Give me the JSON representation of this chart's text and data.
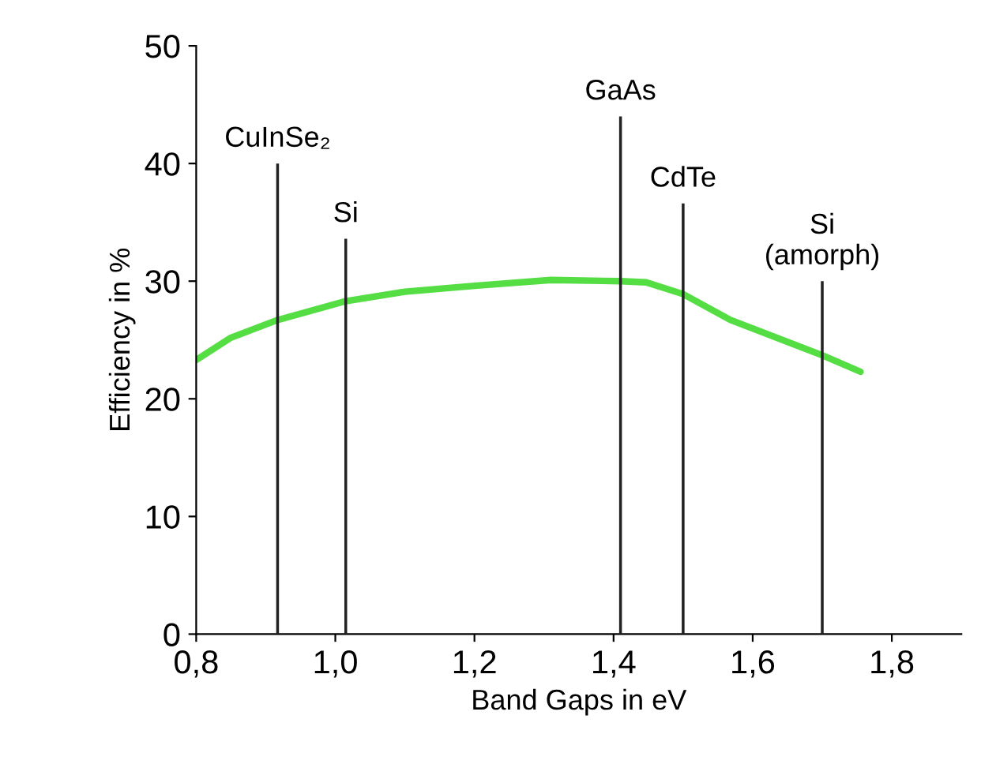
{
  "chart_data": {
    "type": "bar",
    "xlabel": "Band Gaps in eV",
    "ylabel": "Efficiency in %",
    "xlim": [
      0.8,
      1.9
    ],
    "xticks": [
      {
        "value": 0.8,
        "label": "0,8"
      },
      {
        "value": 1.0,
        "label": "1,0"
      },
      {
        "value": 1.2,
        "label": "1,2"
      },
      {
        "value": 1.4,
        "label": "1,4"
      },
      {
        "value": 1.6,
        "label": "1,6"
      },
      {
        "value": 1.8,
        "label": "1,8"
      }
    ],
    "ylim": [
      0,
      50
    ],
    "yticks": [
      0,
      10,
      20,
      30,
      40,
      50
    ],
    "grid": false,
    "legend": false,
    "series": [
      {
        "type": "line",
        "color": "#55dd44",
        "x": [
          0.8,
          0.85,
          0.917,
          1.015,
          1.1,
          1.2,
          1.31,
          1.41,
          1.447,
          1.5,
          1.568,
          1.7,
          1.755
        ],
        "values": [
          23.3,
          25.2,
          26.7,
          28.3,
          29.1,
          29.6,
          30.1,
          30.0,
          29.9,
          28.9,
          26.7,
          23.7,
          22.3
        ]
      },
      {
        "color": "#222222",
        "x": [
          0.917,
          1.015,
          1.41,
          1.5,
          1.7
        ],
        "values": [
          40,
          33.6,
          44,
          36.6,
          30
        ]
      }
    ],
    "annotations": [
      {
        "text": "CuInSe₂",
        "x": 0.917,
        "y": 40
      },
      {
        "text": "Si",
        "x": 1.015,
        "y": 33.6
      },
      {
        "text": "GaAs",
        "x": 1.41,
        "y": 44
      },
      {
        "text": "CdTe",
        "x": 1.5,
        "y": 36.6
      },
      {
        "text": "Si\n(amorph)",
        "x": 1.7,
        "y": 30
      }
    ]
  }
}
